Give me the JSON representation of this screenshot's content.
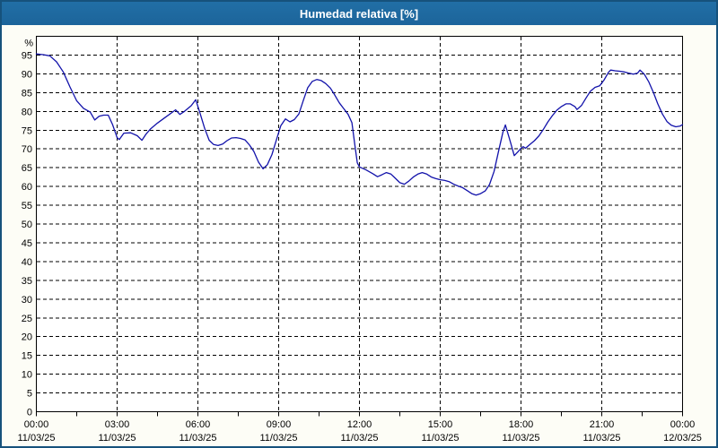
{
  "title_bar": {
    "text": "Humedad relativa [%]"
  },
  "colors": {
    "frame_border": "#16527c",
    "title_bar_bg": "#1e6aa0",
    "title_text": "#ffffff",
    "panel_bg": "#fdfdf6",
    "plot_bg": "#ffffff",
    "grid": "#000000",
    "axis_text": "#000000",
    "line": "#1212aa"
  },
  "chart_data": {
    "type": "line",
    "title": "Humedad relativa [%]",
    "ylabel": "%",
    "xlabel": "",
    "ylim": [
      0,
      100
    ],
    "xlim_hours": [
      0,
      24
    ],
    "grid": "dashed",
    "legend_position": "none",
    "y_ticks": [
      0,
      5,
      10,
      15,
      20,
      25,
      30,
      35,
      40,
      45,
      50,
      55,
      60,
      65,
      70,
      75,
      80,
      85,
      90,
      95
    ],
    "y_unit_label": "%",
    "x_ticks": [
      {
        "hour": 0,
        "time": "00:00",
        "date": "11/03/25"
      },
      {
        "hour": 3,
        "time": "03:00",
        "date": "11/03/25"
      },
      {
        "hour": 6,
        "time": "06:00",
        "date": "11/03/25"
      },
      {
        "hour": 9,
        "time": "09:00",
        "date": "11/03/25"
      },
      {
        "hour": 12,
        "time": "12:00",
        "date": "11/03/25"
      },
      {
        "hour": 15,
        "time": "15:00",
        "date": "11/03/25"
      },
      {
        "hour": 18,
        "time": "18:00",
        "date": "11/03/25"
      },
      {
        "hour": 21,
        "time": "21:00",
        "date": "11/03/25"
      },
      {
        "hour": 24,
        "time": "00:00",
        "date": "12/03/25"
      }
    ],
    "minor_tick_step_hours": 1.5,
    "series": [
      {
        "name": "Humedad relativa",
        "color": "#1212aa",
        "points": [
          [
            0.0,
            95.3
          ],
          [
            0.25,
            95.1
          ],
          [
            0.5,
            94.8
          ],
          [
            0.75,
            93.2
          ],
          [
            1.0,
            90.5
          ],
          [
            1.25,
            86.5
          ],
          [
            1.5,
            82.8
          ],
          [
            1.75,
            80.8
          ],
          [
            2.0,
            79.8
          ],
          [
            2.17,
            77.7
          ],
          [
            2.33,
            78.7
          ],
          [
            2.5,
            79.0
          ],
          [
            2.67,
            79.0
          ],
          [
            2.83,
            76.5
          ],
          [
            3.0,
            73.0
          ],
          [
            3.08,
            72.5
          ],
          [
            3.25,
            74.2
          ],
          [
            3.5,
            74.3
          ],
          [
            3.75,
            73.5
          ],
          [
            3.92,
            72.3
          ],
          [
            4.08,
            74.0
          ],
          [
            4.25,
            75.4
          ],
          [
            4.5,
            76.9
          ],
          [
            4.75,
            78.2
          ],
          [
            5.0,
            79.5
          ],
          [
            5.17,
            80.4
          ],
          [
            5.33,
            79.2
          ],
          [
            5.5,
            80.0
          ],
          [
            5.75,
            81.5
          ],
          [
            5.92,
            83.1
          ],
          [
            6.08,
            79.5
          ],
          [
            6.25,
            75.5
          ],
          [
            6.42,
            72.3
          ],
          [
            6.58,
            71.2
          ],
          [
            6.75,
            70.9
          ],
          [
            6.92,
            71.3
          ],
          [
            7.08,
            72.2
          ],
          [
            7.25,
            72.9
          ],
          [
            7.42,
            73.0
          ],
          [
            7.58,
            72.8
          ],
          [
            7.75,
            72.4
          ],
          [
            7.92,
            71.0
          ],
          [
            8.08,
            69.3
          ],
          [
            8.25,
            66.5
          ],
          [
            8.42,
            64.7
          ],
          [
            8.58,
            65.8
          ],
          [
            8.75,
            68.5
          ],
          [
            8.92,
            72.5
          ],
          [
            9.08,
            76.2
          ],
          [
            9.25,
            78.0
          ],
          [
            9.42,
            77.2
          ],
          [
            9.58,
            77.8
          ],
          [
            9.75,
            79.3
          ],
          [
            9.92,
            83.0
          ],
          [
            10.08,
            86.3
          ],
          [
            10.25,
            88.0
          ],
          [
            10.42,
            88.5
          ],
          [
            10.58,
            88.2
          ],
          [
            10.75,
            87.4
          ],
          [
            10.92,
            86.2
          ],
          [
            11.08,
            84.4
          ],
          [
            11.25,
            82.3
          ],
          [
            11.42,
            80.7
          ],
          [
            11.58,
            79.2
          ],
          [
            11.72,
            77.0
          ],
          [
            11.83,
            71.0
          ],
          [
            11.92,
            66.3
          ],
          [
            12.0,
            65.2
          ],
          [
            12.25,
            64.4
          ],
          [
            12.5,
            63.4
          ],
          [
            12.67,
            62.6
          ],
          [
            12.83,
            63.1
          ],
          [
            13.0,
            63.7
          ],
          [
            13.17,
            63.3
          ],
          [
            13.33,
            62.2
          ],
          [
            13.5,
            61.0
          ],
          [
            13.67,
            60.6
          ],
          [
            13.83,
            61.4
          ],
          [
            14.0,
            62.5
          ],
          [
            14.17,
            63.3
          ],
          [
            14.33,
            63.7
          ],
          [
            14.5,
            63.3
          ],
          [
            14.67,
            62.5
          ],
          [
            14.83,
            62.1
          ],
          [
            15.0,
            61.8
          ],
          [
            15.17,
            61.6
          ],
          [
            15.33,
            61.3
          ],
          [
            15.5,
            60.6
          ],
          [
            15.67,
            60.1
          ],
          [
            15.83,
            59.7
          ],
          [
            16.0,
            58.9
          ],
          [
            16.17,
            58.1
          ],
          [
            16.33,
            57.7
          ],
          [
            16.5,
            58.1
          ],
          [
            16.67,
            58.8
          ],
          [
            16.83,
            60.5
          ],
          [
            17.0,
            64.0
          ],
          [
            17.17,
            69.5
          ],
          [
            17.33,
            74.5
          ],
          [
            17.42,
            76.4
          ],
          [
            17.58,
            72.5
          ],
          [
            17.75,
            68.2
          ],
          [
            17.92,
            69.5
          ],
          [
            18.0,
            70.2
          ],
          [
            18.08,
            70.6
          ],
          [
            18.17,
            70.2
          ],
          [
            18.33,
            71.2
          ],
          [
            18.5,
            72.2
          ],
          [
            18.67,
            73.5
          ],
          [
            18.83,
            75.2
          ],
          [
            19.0,
            77.2
          ],
          [
            19.17,
            78.9
          ],
          [
            19.33,
            80.3
          ],
          [
            19.5,
            81.3
          ],
          [
            19.67,
            82.0
          ],
          [
            19.83,
            82.0
          ],
          [
            20.0,
            81.3
          ],
          [
            20.08,
            80.5
          ],
          [
            20.25,
            81.6
          ],
          [
            20.42,
            83.6
          ],
          [
            20.58,
            85.4
          ],
          [
            20.75,
            86.4
          ],
          [
            20.92,
            86.8
          ],
          [
            21.08,
            88.3
          ],
          [
            21.25,
            90.4
          ],
          [
            21.33,
            91.0
          ],
          [
            21.5,
            90.8
          ],
          [
            21.67,
            90.7
          ],
          [
            21.83,
            90.5
          ],
          [
            22.0,
            90.2
          ],
          [
            22.17,
            89.9
          ],
          [
            22.33,
            90.2
          ],
          [
            22.42,
            91.0
          ],
          [
            22.58,
            89.9
          ],
          [
            22.75,
            87.8
          ],
          [
            22.92,
            85.0
          ],
          [
            23.08,
            82.0
          ],
          [
            23.25,
            79.3
          ],
          [
            23.42,
            77.3
          ],
          [
            23.58,
            76.3
          ],
          [
            23.75,
            75.9
          ],
          [
            23.92,
            76.1
          ],
          [
            24.0,
            76.5
          ]
        ]
      }
    ]
  }
}
